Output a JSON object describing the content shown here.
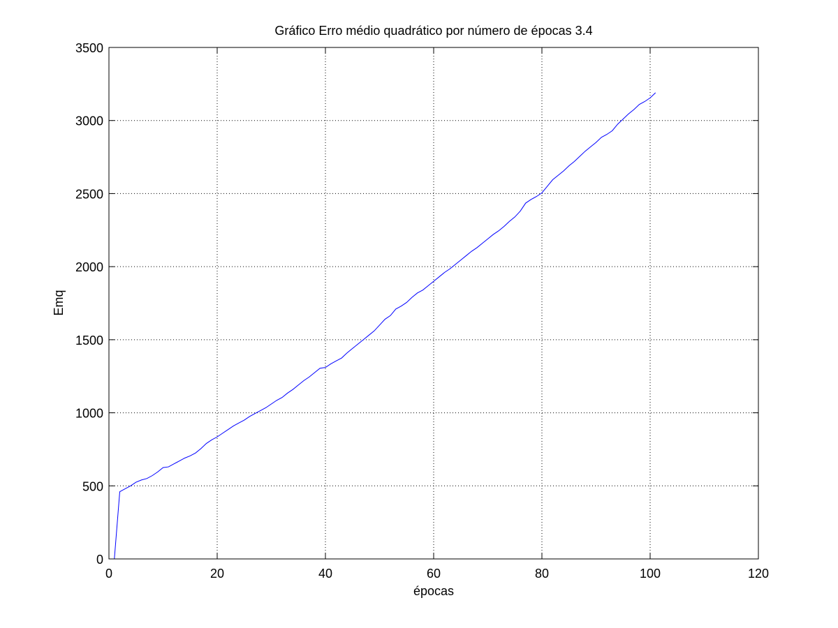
{
  "chart_data": {
    "type": "line",
    "title": "Gráfico Erro médio quadrático por número de épocas 3.4",
    "xlabel": "épocas",
    "ylabel": "Emq",
    "xlim": [
      0,
      120
    ],
    "ylim": [
      0,
      3500
    ],
    "xticks": [
      0,
      20,
      40,
      60,
      80,
      100,
      120
    ],
    "yticks": [
      0,
      500,
      1000,
      1500,
      2000,
      2500,
      3000,
      3500
    ],
    "grid": true,
    "line_color": "#0000ff",
    "series": [
      {
        "x": [
          1,
          2,
          3,
          4,
          5,
          6,
          7,
          8,
          9,
          10,
          11,
          12,
          13,
          14,
          15,
          16,
          17,
          18,
          19,
          20,
          21,
          22,
          23,
          24,
          25,
          26,
          27,
          28,
          29,
          30,
          31,
          32,
          33,
          34,
          35,
          36,
          37,
          38,
          39,
          40,
          41,
          42,
          43,
          44,
          45,
          46,
          47,
          48,
          49,
          50,
          51,
          52,
          53,
          54,
          55,
          56,
          57,
          58,
          59,
          60,
          61,
          62,
          63,
          64,
          65,
          66,
          67,
          68,
          69,
          70,
          71,
          72,
          73,
          74,
          75,
          76,
          77,
          78,
          79,
          80,
          81,
          82,
          83,
          84,
          85,
          86,
          87,
          88,
          89,
          90,
          91,
          92,
          93,
          94,
          95,
          96,
          97,
          98,
          99,
          100,
          101
        ],
        "values": [
          0,
          460,
          480,
          500,
          525,
          540,
          550,
          570,
          595,
          625,
          630,
          650,
          670,
          690,
          705,
          725,
          755,
          790,
          815,
          835,
          860,
          885,
          910,
          930,
          950,
          975,
          995,
          1015,
          1035,
          1060,
          1085,
          1105,
          1135,
          1160,
          1190,
          1220,
          1245,
          1275,
          1305,
          1310,
          1335,
          1355,
          1375,
          1410,
          1440,
          1470,
          1500,
          1530,
          1560,
          1600,
          1640,
          1665,
          1710,
          1730,
          1755,
          1790,
          1820,
          1840,
          1870,
          1900,
          1930,
          1960,
          1985,
          2015,
          2045,
          2075,
          2105,
          2130,
          2160,
          2190,
          2220,
          2245,
          2275,
          2310,
          2340,
          2380,
          2435,
          2460,
          2480,
          2505,
          2550,
          2595,
          2625,
          2655,
          2690,
          2720,
          2755,
          2790,
          2820,
          2850,
          2885,
          2905,
          2930,
          2975,
          3010,
          3045,
          3075,
          3110,
          3130,
          3155,
          3190
        ]
      }
    ]
  }
}
